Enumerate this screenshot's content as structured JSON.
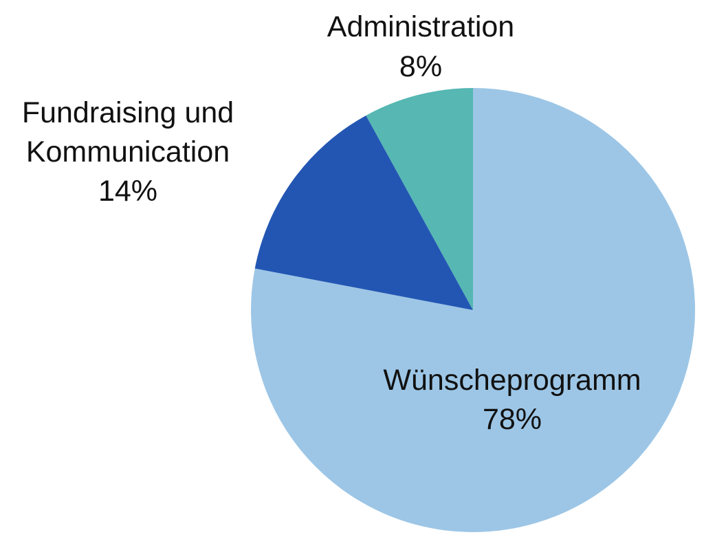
{
  "chart_data": {
    "type": "pie",
    "title": "",
    "start_angle_deg": 0,
    "direction": "clockwise",
    "slices": [
      {
        "label_lines": [
          "Wünscheprogramm"
        ],
        "value": 78,
        "value_label": "78%",
        "color": "#9dc6e6"
      },
      {
        "label_lines": [
          "Fundraising und",
          "Kommunication"
        ],
        "value": 14,
        "value_label": "14%",
        "color": "#2356b3"
      },
      {
        "label_lines": [
          "Administration"
        ],
        "value": 8,
        "value_label": "8%",
        "color": "#56b7b3"
      }
    ]
  }
}
